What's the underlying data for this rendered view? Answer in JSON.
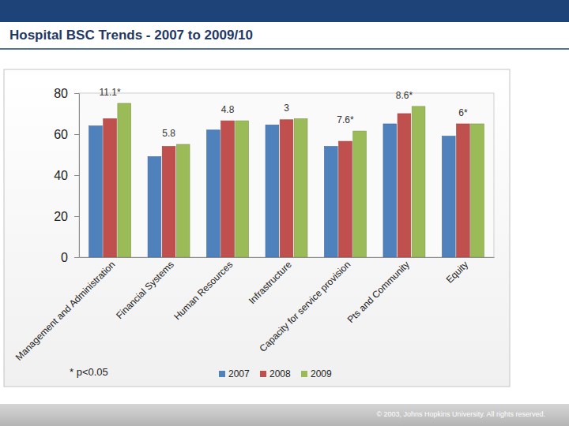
{
  "chart_data": {
    "type": "bar",
    "title": "Hospital BSC Trends - 2007 to 2009/10",
    "categories": [
      "Management and Administration",
      "Financial Systems",
      "Human Resources",
      "Infrastructure",
      "Capacity for service provision",
      "Pts and Community",
      "Equity"
    ],
    "series": [
      {
        "name": "2007",
        "color": "#4f81bd",
        "values": [
          64,
          49,
          62,
          64.5,
          54,
          65,
          59
        ]
      },
      {
        "name": "2008",
        "color": "#c0504d",
        "values": [
          67.5,
          54,
          66.5,
          67,
          56.5,
          70,
          65
        ]
      },
      {
        "name": "2009",
        "color": "#9bbb59",
        "values": [
          75,
          55,
          66.5,
          67.5,
          61.5,
          73.5,
          65
        ]
      }
    ],
    "annotations": [
      "11.1*",
      "5.8",
      "4.8",
      "3",
      "7.6*",
      "8.6*",
      "6*"
    ],
    "footnote": "* p<0.05",
    "copyright": "© 2003, Johns Hopkins University. All rights reserved.",
    "ylim": [
      0,
      80
    ],
    "yticks": [
      0,
      20,
      40,
      60,
      80
    ],
    "grid": false,
    "legend": "bottom"
  }
}
